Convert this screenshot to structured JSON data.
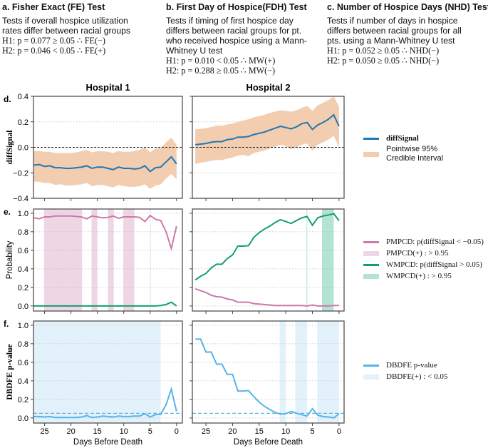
{
  "tests": [
    {
      "title": "a. Fisher Exact (FE) Test",
      "desc": "Tests if overall hospice utilization\nrates differ between racial groups",
      "h1": "H1: p = 0.077 ≥ 0.05 ∴ FE(−)",
      "h2": "H2: p = 0.046 < 0.05 ∴ FE(+)"
    },
    {
      "title": "b. First Day of Hospice(FDH) Test",
      "desc": "Tests if timing of first hospice day\ndiffers between racial groups for pt.\nwho received hospice using a Mann-\nWhitney U test",
      "h1": "H1: p = 0.010 < 0.05 ∴ MW(+)",
      "h2": "H2: p = 0.288 ≥ 0.05 ∴ MW(−)"
    },
    {
      "title": "c. Number of Hospice Days (NHD) Test",
      "desc": "Tests if number of days in hospice\ndiffers between racial groups for all\npts. using a Mann-Whitney U test",
      "h1": "H1: p = 0.052 ≥ 0.05 ∴ NHD(−)",
      "h2": "H2: p = 0.050 ≥ 0.05 ∴ NHD(−)"
    }
  ],
  "legend": {
    "diffsignal": "diffSignal",
    "ci": "Pointwise 95%\nCredible Interval",
    "pmpcd": "PMPCD: p(diffSignal < −0.05)",
    "pmpcd_plus": "PMPCD(+) : > 0.95",
    "wmpcd": "WMPCD: p(diffSignal > 0.05)",
    "wmpcd_plus": "WMPCD(+) : > 0.95",
    "dbdfe": "DBDFE p-value",
    "dbdfe_plus": "DBDFE(+) : < 0.05"
  },
  "colors": {
    "diffsignal": "#1f77b4",
    "ci": "#f3cdb0",
    "pmpcd": "#cc79a7",
    "pmpcd_shade": "#efd6e4",
    "wmpcd": "#10a070",
    "wmpcd_shade": "#b3e3d2",
    "dbdfe": "#56b4e9",
    "dbdfe_shade": "#e3f2fa"
  },
  "chart_data": {
    "type": "line",
    "x_label": "Days Before Death",
    "x": [
      27,
      26,
      25,
      24,
      23,
      22,
      21,
      20,
      19,
      18,
      17,
      16,
      15,
      14,
      13,
      12,
      11,
      10,
      9,
      8,
      7,
      6,
      5,
      4,
      3,
      2,
      1,
      0
    ],
    "xticks": [
      25,
      20,
      15,
      10,
      5,
      0
    ],
    "columns": [
      {
        "title": "Hospital 1",
        "xlim": [
          27.1,
          -1.1
        ]
      },
      {
        "title": "Hospital 2",
        "xlim": [
          27.55,
          -0.95
        ]
      }
    ],
    "rows": [
      {
        "letter": "d.",
        "ylabel": "diffSignal",
        "ylim": [
          -0.4,
          0.4
        ],
        "yticks": [
          "-0.4",
          "-0.2",
          "0.0",
          "0.2",
          "0.4"
        ],
        "zero_line": 0,
        "panels": [
          {
            "bands": [
              {
                "key": "ci",
                "lower": [
                  -0.27,
                  -0.27,
                  -0.28,
                  -0.28,
                  -0.295,
                  -0.29,
                  -0.3,
                  -0.3,
                  -0.295,
                  -0.29,
                  -0.28,
                  -0.305,
                  -0.295,
                  -0.295,
                  -0.305,
                  -0.315,
                  -0.295,
                  -0.305,
                  -0.31,
                  -0.31,
                  -0.305,
                  -0.29,
                  -0.325,
                  -0.3,
                  -0.29,
                  -0.245,
                  -0.21,
                  -0.25
                ],
                "upper": [
                  -0.03,
                  -0.03,
                  -0.035,
                  -0.035,
                  -0.045,
                  -0.045,
                  -0.045,
                  -0.045,
                  -0.04,
                  -0.03,
                  -0.02,
                  -0.04,
                  -0.03,
                  -0.03,
                  -0.035,
                  -0.045,
                  -0.03,
                  -0.035,
                  -0.035,
                  -0.03,
                  -0.02,
                  0.0,
                  -0.04,
                  -0.01,
                  -0.005,
                  0.04,
                  0.075,
                  0.02
                ]
              }
            ],
            "series": [
              {
                "key": "diffsignal",
                "values": [
                  -0.14,
                  -0.135,
                  -0.15,
                  -0.145,
                  -0.16,
                  -0.16,
                  -0.165,
                  -0.165,
                  -0.16,
                  -0.155,
                  -0.145,
                  -0.165,
                  -0.155,
                  -0.155,
                  -0.165,
                  -0.175,
                  -0.155,
                  -0.165,
                  -0.165,
                  -0.17,
                  -0.165,
                  -0.145,
                  -0.19,
                  -0.16,
                  -0.155,
                  -0.115,
                  -0.075,
                  -0.13
                ]
              }
            ]
          },
          {
            "bands": [
              {
                "key": "ci",
                "lower": [
                  -0.13,
                  -0.12,
                  -0.115,
                  -0.105,
                  -0.1,
                  -0.1,
                  -0.09,
                  -0.08,
                  -0.065,
                  -0.06,
                  -0.07,
                  -0.045,
                  -0.035,
                  -0.025,
                  -0.01,
                  0.005,
                  0.02,
                  0.01,
                  -0.015,
                  0.0,
                  0.02,
                  0.03,
                  -0.025,
                  0.02,
                  0.04,
                  0.06,
                  0.09,
                  0.0
                ],
                "upper": [
                  0.14,
                  0.145,
                  0.15,
                  0.16,
                  0.17,
                  0.17,
                  0.18,
                  0.185,
                  0.2,
                  0.21,
                  0.22,
                  0.235,
                  0.245,
                  0.255,
                  0.27,
                  0.28,
                  0.29,
                  0.285,
                  0.28,
                  0.29,
                  0.31,
                  0.325,
                  0.285,
                  0.33,
                  0.35,
                  0.37,
                  0.4,
                  0.32
                ]
              }
            ],
            "series": [
              {
                "key": "diffsignal",
                "values": [
                  0.02,
                  0.025,
                  0.03,
                  0.04,
                  0.045,
                  0.045,
                  0.06,
                  0.065,
                  0.08,
                  0.08,
                  0.085,
                  0.1,
                  0.11,
                  0.12,
                  0.135,
                  0.15,
                  0.165,
                  0.155,
                  0.145,
                  0.16,
                  0.185,
                  0.195,
                  0.14,
                  0.175,
                  0.195,
                  0.22,
                  0.255,
                  0.165
                ]
              }
            ]
          }
        ]
      },
      {
        "letter": "e.",
        "ylabel": "Probability",
        "ylim": [
          -0.055,
          1.045
        ],
        "yticks": [
          "0.0",
          "0.2",
          "0.4",
          "0.6",
          "0.8",
          "1.0"
        ],
        "panels": [
          {
            "spans": [
              {
                "key": "pmpcd_shade",
                "from": 25.1,
                "to": 17.9
              },
              {
                "key": "pmpcd_shade",
                "from": 16.1,
                "to": 15.0
              },
              {
                "key": "pmpcd_shade",
                "from": 13.0,
                "to": 11.9
              },
              {
                "key": "pmpcd_shade",
                "from": 10.1,
                "to": 8.0
              },
              {
                "key": "pmpcd_shade",
                "from": 5.05,
                "to": 4.95
              }
            ],
            "series": [
              {
                "key": "pmpcd",
                "values": [
                  0.95,
                  0.94,
                  0.96,
                  0.96,
                  0.97,
                  0.97,
                  0.97,
                  0.97,
                  0.965,
                  0.96,
                  0.94,
                  0.97,
                  0.96,
                  0.95,
                  0.955,
                  0.97,
                  0.945,
                  0.96,
                  0.96,
                  0.96,
                  0.955,
                  0.91,
                  0.975,
                  0.935,
                  0.92,
                  0.8,
                  0.62,
                  0.86
                ]
              },
              {
                "key": "wmpcd",
                "values": [
                  0,
                  0,
                  0,
                  0,
                  0,
                  0,
                  0,
                  0,
                  0,
                  0,
                  0,
                  0,
                  0,
                  0,
                  0,
                  0,
                  0,
                  0,
                  0,
                  0,
                  0,
                  0,
                  0,
                  0,
                  0.005,
                  0.015,
                  0.04,
                  0.0
                ]
              }
            ]
          },
          {
            "spans": [
              {
                "key": "wmpcd_shade",
                "from": 6.1,
                "to": 6.0
              },
              {
                "key": "wmpcd_shade",
                "from": 3.2,
                "to": 1.0
              }
            ],
            "series": [
              {
                "key": "pmpcd",
                "values": [
                  0.185,
                  0.165,
                  0.145,
                  0.115,
                  0.1,
                  0.095,
                  0.075,
                  0.065,
                  0.04,
                  0.04,
                  0.04,
                  0.025,
                  0.02,
                  0.015,
                  0.01,
                  0.005,
                  0.005,
                  0.005,
                  0.005,
                  0.005,
                  0.005,
                  0.0,
                  0.01,
                  0.0,
                  0.0,
                  0.0,
                  0.005,
                  0.005
                ]
              },
              {
                "key": "wmpcd",
                "values": [
                  0.28,
                  0.32,
                  0.35,
                  0.41,
                  0.45,
                  0.45,
                  0.51,
                  0.55,
                  0.645,
                  0.645,
                  0.65,
                  0.74,
                  0.79,
                  0.83,
                  0.86,
                  0.9,
                  0.93,
                  0.91,
                  0.89,
                  0.92,
                  0.95,
                  0.965,
                  0.87,
                  0.95,
                  0.97,
                  0.98,
                  0.995,
                  0.92
                ]
              }
            ]
          }
        ]
      },
      {
        "letter": "f.",
        "ylabel": "DBDFE p-value",
        "ylim": [
          -0.055,
          1.045
        ],
        "yticks": [
          "0.0",
          "0.2",
          "0.4",
          "0.6",
          "0.8",
          "1.0"
        ],
        "threshold": 0.05,
        "panels": [
          {
            "spans": [
              {
                "key": "dbdfe_shade",
                "from": 27.1,
                "to": 3.0
              }
            ],
            "series": [
              {
                "key": "dbdfe",
                "values": [
                  0.015,
                  0.015,
                  0.01,
                  0.015,
                  0.005,
                  0.005,
                  0.005,
                  0.005,
                  0.005,
                  0.01,
                  0.025,
                  0.005,
                  0.01,
                  0.02,
                  0.015,
                  0.01,
                  0.02,
                  0.015,
                  0.015,
                  0.02,
                  0.02,
                  0.045,
                  0.01,
                  0.035,
                  0.04,
                  0.14,
                  0.31,
                  0.07
                ]
              }
            ]
          },
          {
            "spans": [
              {
                "key": "dbdfe_shade",
                "from": 11.15,
                "to": 10.0
              },
              {
                "key": "dbdfe_shade",
                "from": 8.2,
                "to": 6.0
              },
              {
                "key": "dbdfe_shade",
                "from": 4.1,
                "to": 0.0
              }
            ],
            "series": [
              {
                "key": "dbdfe",
                "values": [
                  0.85,
                  0.85,
                  0.71,
                  0.71,
                  0.58,
                  0.58,
                  0.47,
                  0.47,
                  0.29,
                  0.29,
                  0.295,
                  0.23,
                  0.17,
                  0.125,
                  0.09,
                  0.06,
                  0.04,
                  0.045,
                  0.07,
                  0.05,
                  0.035,
                  0.02,
                  0.1,
                  0.03,
                  0.015,
                  0.01,
                  0.0,
                  0.045
                ]
              }
            ]
          }
        ]
      }
    ]
  }
}
